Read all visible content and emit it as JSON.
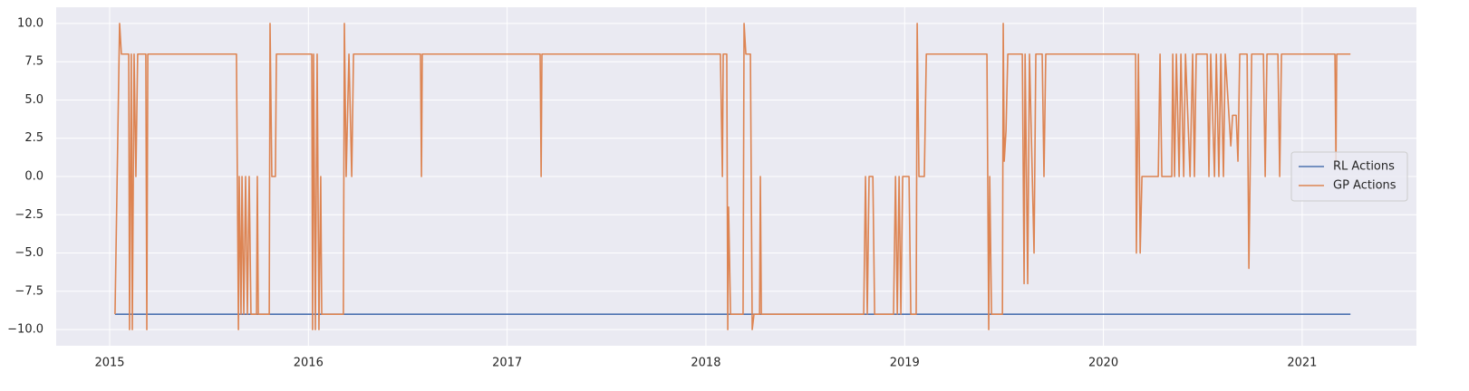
{
  "chart_data": {
    "type": "line",
    "xlim": [
      2014.731,
      2021.575
    ],
    "ylim": [
      -11.06,
      11.06
    ],
    "xticks": [
      2015,
      2016,
      2017,
      2018,
      2019,
      2020,
      2021
    ],
    "yticks": [
      {
        "value": -10,
        "label": "−10.0"
      },
      {
        "value": -7.5,
        "label": "−7.5"
      },
      {
        "value": -5,
        "label": "−5.0"
      },
      {
        "value": -2.5,
        "label": "−2.5"
      },
      {
        "value": 0,
        "label": "0.0"
      },
      2.5,
      {
        "value": 5,
        "label": "5.0"
      },
      7.5,
      {
        "value": 10,
        "label": "10.0"
      }
    ],
    "grid": true,
    "legend": "center right",
    "series": [
      {
        "name": "RL Actions",
        "color": "#4c72b0",
        "x": [
          2015.027,
          2021.243
        ],
        "values": [
          -9,
          -9
        ]
      },
      {
        "name": "GP Actions",
        "color": "#dd8452",
        "x": [
          2015.027,
          2015.05,
          2015.059,
          2015.096,
          2015.1,
          2015.109,
          2015.114,
          2015.123,
          2015.132,
          2015.141,
          2015.182,
          2015.187,
          2015.192,
          2015.638,
          2015.648,
          2015.652,
          2015.661,
          2015.666,
          2015.675,
          2015.684,
          2015.693,
          2015.702,
          2015.711,
          2015.739,
          2015.743,
          2015.748,
          2015.803,
          2015.807,
          2015.816,
          2015.834,
          2015.839,
          2016.017,
          2016.021,
          2016.026,
          2016.035,
          2016.044,
          2016.053,
          2016.062,
          2016.067,
          2016.176,
          2016.181,
          2016.19,
          2016.204,
          2016.218,
          2016.227,
          2016.564,
          2016.569,
          2016.573,
          2017.166,
          2017.171,
          2017.175,
          2018.073,
          2018.083,
          2018.087,
          2018.105,
          2018.11,
          2018.114,
          2018.124,
          2018.187,
          2018.192,
          2018.201,
          2018.224,
          2018.233,
          2018.242,
          2018.27,
          2018.274,
          2018.279,
          2018.794,
          2018.803,
          2018.812,
          2018.821,
          2018.84,
          2018.849,
          2018.944,
          2018.954,
          2018.963,
          2018.972,
          2018.981,
          2018.99,
          2019.022,
          2019.031,
          2019.058,
          2019.063,
          2019.072,
          2019.099,
          2019.109,
          2019.414,
          2019.423,
          2019.428,
          2019.437,
          2019.492,
          2019.496,
          2019.501,
          2019.51,
          2019.519,
          2019.592,
          2019.601,
          2019.606,
          2019.619,
          2019.628,
          2019.651,
          2019.66,
          2019.692,
          2019.701,
          2019.71,
          2020.162,
          2020.166,
          2020.176,
          2020.185,
          2020.194,
          2020.276,
          2020.285,
          2020.294,
          2020.344,
          2020.349,
          2020.358,
          2020.367,
          2020.381,
          2020.39,
          2020.404,
          2020.413,
          2020.436,
          2020.449,
          2020.458,
          2020.467,
          2020.522,
          2020.531,
          2020.54,
          2020.559,
          2020.568,
          2020.581,
          2020.591,
          2020.604,
          2020.613,
          2020.641,
          2020.65,
          2020.668,
          2020.677,
          2020.686,
          2020.723,
          2020.732,
          2020.746,
          2020.805,
          2020.814,
          2020.823,
          2020.878,
          2020.887,
          2020.896,
          2021.165,
          2021.17,
          2021.174,
          2021.243
        ],
        "values": [
          -9,
          10,
          8,
          8,
          -10,
          8,
          -10,
          8,
          0,
          8,
          8,
          -10,
          8,
          8,
          -10,
          0,
          -9,
          0,
          -9,
          0,
          -9,
          0,
          -9,
          -9,
          0,
          -9,
          -9,
          10,
          0,
          0,
          8,
          8,
          -10,
          8,
          -10,
          8,
          -10,
          0,
          -9,
          -9,
          10,
          0,
          8,
          0,
          8,
          8,
          0,
          8,
          8,
          0,
          8,
          8,
          0,
          8,
          8,
          -10,
          -2,
          -9,
          -9,
          10,
          8,
          8,
          -10,
          -9,
          -9,
          0,
          -9,
          -9,
          0,
          -9,
          0,
          0,
          -9,
          -9,
          0,
          -9,
          0,
          -9,
          0,
          0,
          -9,
          -9,
          10,
          0,
          0,
          8,
          8,
          -10,
          0,
          -9,
          -9,
          10,
          1,
          3,
          8,
          8,
          -7,
          8,
          -7,
          8,
          -5,
          8,
          8,
          0,
          8,
          8,
          -5,
          8,
          -5,
          0,
          0,
          8,
          0,
          0,
          8,
          0,
          8,
          0,
          8,
          0,
          8,
          0,
          8,
          0,
          8,
          8,
          0,
          8,
          0,
          8,
          0,
          8,
          0,
          8,
          2,
          4,
          4,
          1,
          8,
          8,
          -6,
          8,
          8,
          0,
          8,
          8,
          0,
          8,
          8,
          1,
          8,
          8
        ]
      }
    ]
  }
}
